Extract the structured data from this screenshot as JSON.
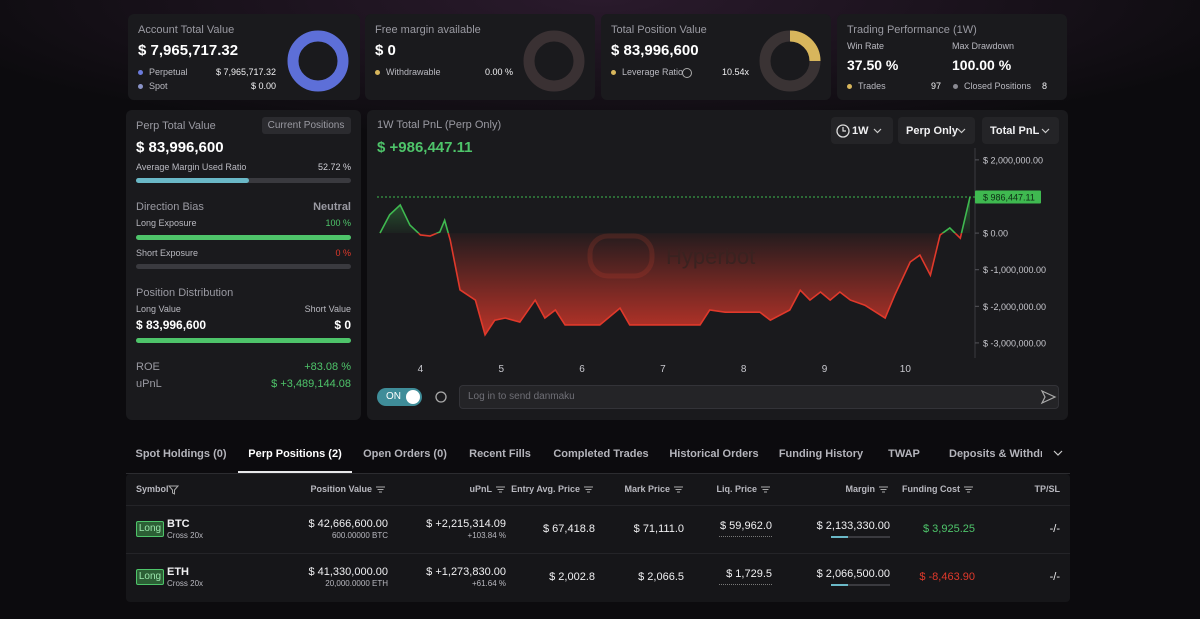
{
  "cards": [
    {
      "title": "Account Total Value",
      "value": "$ 7,965,717.32",
      "items": [
        {
          "label": "Perpetual",
          "value": "$ 7,965,717.32"
        },
        {
          "label": "Spot",
          "value": "$ 0.00"
        }
      ]
    },
    {
      "title": "Free margin available",
      "value": "$ 0",
      "items": [
        {
          "label": "Withdrawable",
          "value": "0.00 %"
        }
      ]
    },
    {
      "title": "Total Position Value",
      "value": "$ 83,996,600",
      "items": [
        {
          "label": "Leverage Ratio",
          "value": "10.54x"
        }
      ]
    },
    {
      "title": "Trading Performance (1W)",
      "stats": [
        {
          "label": "Win Rate",
          "value": "37.50 %"
        },
        {
          "label": "Max Drawdown",
          "value": "100.00 %"
        }
      ],
      "items": [
        {
          "label": "Trades",
          "value": "97"
        },
        {
          "label": "Closed Positions",
          "value": "8"
        }
      ]
    }
  ],
  "perp_panel": {
    "title": "Perp Total Value",
    "button": "Current Positions",
    "value": "$ 83,996,600",
    "margin_ratio_label": "Average Margin Used Ratio",
    "margin_ratio": "52.72 %",
    "bias_title": "Direction Bias",
    "bias": "Neutral",
    "long_exposure_label": "Long Exposure",
    "long_exposure": "100 %",
    "short_exposure_label": "Short Exposure",
    "short_exposure": "0 %",
    "distribution_title": "Position Distribution",
    "long_value_label": "Long Value",
    "short_value_label": "Short Value",
    "long_value": "$ 83,996,600",
    "short_value": "$ 0",
    "roe_label": "ROE",
    "roe": "+83.08 %",
    "upnl_label": "uPnL",
    "upnl": "$ +3,489,144.08"
  },
  "pnl_panel": {
    "title": "1W Total PnL (Perp Only)",
    "value": "$ +986,447.11",
    "controls": [
      "1W",
      "Perp Only",
      "Total PnL"
    ],
    "watermark": "Hyperbot",
    "toggle": "ON",
    "input_placeholder": "Log in to send danmaku",
    "chart": {
      "type": "area",
      "x": [
        3.5,
        3.62,
        3.75,
        3.87,
        4.0,
        4.12,
        4.24,
        4.3,
        4.37,
        4.49,
        4.68,
        4.8,
        4.92,
        5.05,
        5.23,
        5.42,
        5.54,
        5.67,
        5.79,
        6.22,
        6.47,
        6.59,
        7.46,
        7.58,
        7.77,
        8.2,
        8.33,
        8.57,
        8.7,
        8.82,
        8.95,
        9.07,
        9.19,
        9.32,
        9.5,
        9.75,
        9.87,
        10.06,
        10.18,
        10.31,
        10.43,
        10.55,
        10.68,
        10.8
      ],
      "values": [
        0,
        500000,
        770000,
        220000,
        -50000,
        -80000,
        30000,
        350000,
        -200000,
        -1550000,
        -1830000,
        -2780000,
        -2380000,
        -2320000,
        -2430000,
        -1830000,
        -2320000,
        -2100000,
        -2510000,
        -2510000,
        -2050000,
        -2510000,
        -2510000,
        -2100000,
        -2160000,
        -2160000,
        -2380000,
        -2100000,
        -1560000,
        -1830000,
        -1610000,
        -1830000,
        -1610000,
        -1830000,
        -1970000,
        -2320000,
        -1690000,
        -790000,
        -600000,
        -1150000,
        -50000,
        140000,
        -140000,
        986447.11
      ],
      "last_value_label": "$ 986,447.11",
      "xlim": [
        3.5,
        10.8
      ],
      "xticks": [
        4,
        5,
        6,
        7,
        8,
        9,
        10
      ],
      "ylim": [
        -3330000,
        2270000
      ],
      "yticks": [
        {
          "value": 2000000,
          "label": "$ 2,000,000.00"
        },
        {
          "value": 0,
          "label": "$ 0.00"
        },
        {
          "value": -1000000,
          "label": "$ -1,000,000.00"
        },
        {
          "value": -2000000,
          "label": "$ -2,000,000.00"
        },
        {
          "value": -3000000,
          "label": "$ -3,000,000.00"
        }
      ],
      "color_up": "#3fb950",
      "color_down": "#e0392b"
    }
  },
  "tabs": {
    "items": [
      "Spot Holdings (0)",
      "Perp Positions (2)",
      "Open Orders (0)",
      "Recent Fills",
      "Completed Trades",
      "Historical Orders",
      "Funding History",
      "TWAP",
      "Deposits & Withdrawals"
    ],
    "active": 1
  },
  "table": {
    "columns": [
      "Symbol",
      "Position Value",
      "uPnL",
      "Entry Avg. Price",
      "Mark Price",
      "Liq. Price",
      "Margin",
      "Funding Cost",
      "TP/SL"
    ],
    "rows": [
      {
        "side": "Long",
        "symbol": "BTC",
        "margin_mode": "Cross 20x",
        "position_value": "$ 42,666,600.00",
        "size": "600.00000 BTC",
        "upnl": "$ +2,215,314.09",
        "upnl_pct": "+103.84 %",
        "entry": "$ 67,418.8",
        "mark": "$ 71,111.0",
        "liq": "$ 59,962.0",
        "margin": "$ 2,133,330.00",
        "funding": "$ 3,925.25",
        "tpsl": "-/-"
      },
      {
        "side": "Long",
        "symbol": "ETH",
        "margin_mode": "Cross 20x",
        "position_value": "$ 41,330,000.00",
        "size": "20,000.0000 ETH",
        "upnl": "$ +1,273,830.00",
        "upnl_pct": "+61.64 %",
        "entry": "$ 2,002.8",
        "mark": "$ 2,066.5",
        "liq": "$ 1,729.5",
        "margin": "$ 2,066,500.00",
        "funding": "$ -8,463.90",
        "tpsl": "-/-"
      }
    ]
  }
}
